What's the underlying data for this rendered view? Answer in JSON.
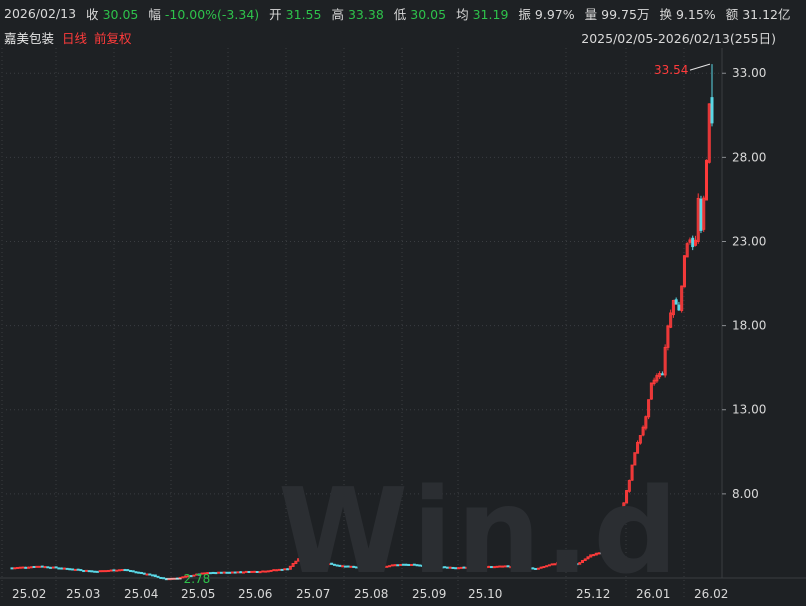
{
  "header": {
    "date": "2026/02/13",
    "close_label": "收",
    "close_value": "30.05",
    "change_label": "幅",
    "change_value": "-10.00%(-3.34)",
    "open_label": "开",
    "open_value": "31.55",
    "high_label": "高",
    "high_value": "33.38",
    "low_label": "低",
    "low_value": "30.05",
    "avg_label": "均",
    "avg_value": "31.19",
    "amplitude_label": "振",
    "amplitude_value": "9.97%",
    "volume_label": "量",
    "volume_value": "99.75万",
    "turnover_label": "换",
    "turnover_value": "9.15%",
    "amount_label": "额",
    "amount_value": "31.12亿"
  },
  "subheader": {
    "stock_name": "嘉美包装",
    "period": "日线",
    "adjust": "前复权",
    "date_range": "2025/02/05-2026/02/13(255日)"
  },
  "watermark": "Win.d",
  "colors": {
    "background": "#1e2124",
    "up": "#ff3b3b",
    "down": "#2ec24b",
    "down_candle": "#5ad8e6",
    "grid": "#3a3d41",
    "text": "#d9d9d9"
  },
  "chart_data": {
    "type": "candlestick",
    "x_ticks": [
      "25.02",
      "25.03",
      "25.04",
      "25.05",
      "25.06",
      "25.07",
      "25.08",
      "25.09",
      "25.10",
      "25.12",
      "26.01",
      "26.02"
    ],
    "y_ticks": [
      "33.00",
      "28.00",
      "23.00",
      "18.00",
      "13.00",
      "8.00"
    ],
    "ylim": [
      3.0,
      34.5
    ],
    "max_label": "33.54",
    "min_label": "2.78",
    "grid": true,
    "candles_note": "daily OHLC, 255 sessions",
    "price_path": [
      [
        0,
        3.6
      ],
      [
        10,
        3.7
      ],
      [
        20,
        3.55
      ],
      [
        30,
        3.4
      ],
      [
        40,
        3.5
      ],
      [
        50,
        3.2
      ],
      [
        55,
        2.95
      ],
      [
        60,
        3.0
      ],
      [
        70,
        3.3
      ],
      [
        80,
        3.35
      ],
      [
        90,
        3.4
      ],
      [
        100,
        3.55
      ],
      [
        105,
        4.3
      ],
      [
        110,
        4.0
      ],
      [
        120,
        3.7
      ],
      [
        130,
        3.6
      ],
      [
        140,
        3.8
      ],
      [
        150,
        3.75
      ],
      [
        160,
        3.6
      ],
      [
        170,
        3.65
      ],
      [
        180,
        3.7
      ],
      [
        190,
        3.55
      ],
      [
        200,
        4.0
      ],
      [
        205,
        3.8
      ],
      [
        210,
        4.4
      ],
      [
        215,
        4.5
      ],
      [
        218,
        5.2
      ],
      [
        220,
        6.0
      ],
      [
        222,
        7.5
      ],
      [
        224,
        8.8
      ],
      [
        226,
        10.5
      ],
      [
        228,
        11.5
      ],
      [
        230,
        12.5
      ],
      [
        232,
        14.5
      ],
      [
        234,
        15.0
      ],
      [
        236,
        15.2
      ],
      [
        238,
        18.0
      ],
      [
        240,
        19.5
      ],
      [
        242,
        19.0
      ],
      [
        243,
        20.5
      ],
      [
        244,
        22.0
      ],
      [
        245,
        23.0
      ],
      [
        246,
        23.2
      ],
      [
        247,
        22.8
      ],
      [
        248,
        23.0
      ],
      [
        249,
        25.5
      ],
      [
        250,
        23.5
      ],
      [
        251,
        25.5
      ],
      [
        252,
        28.0
      ],
      [
        253,
        31.0
      ],
      [
        254,
        33.38
      ]
    ]
  }
}
